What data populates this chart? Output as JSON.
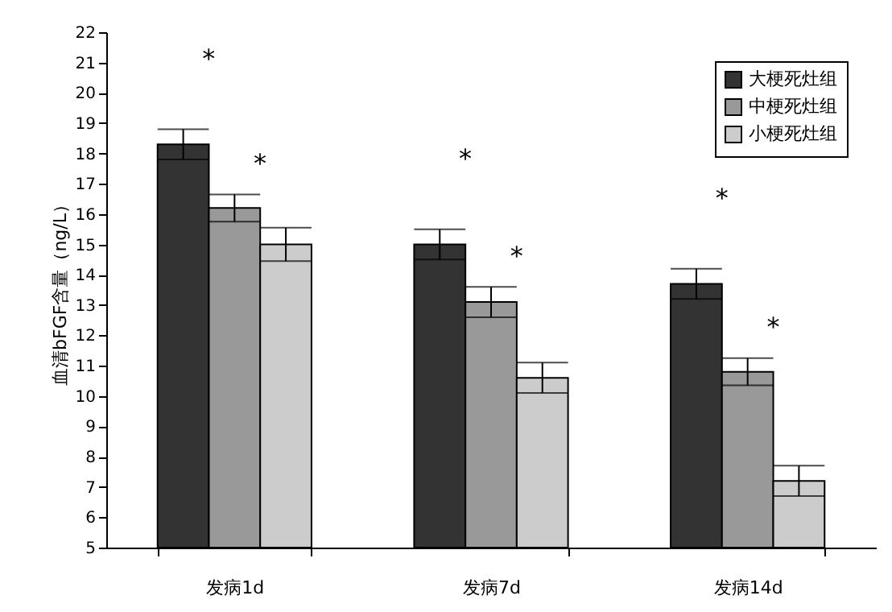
{
  "chart_data": {
    "type": "bar",
    "ylabel": "血清bFGF含量（ng/L）",
    "categories": [
      "发病1d",
      "发病7d",
      "发病14d"
    ],
    "series": [
      {
        "name": "大梗死灶组",
        "color": "#333333",
        "values": [
          18.3,
          15.0,
          13.7
        ],
        "errors": [
          0.5,
          0.5,
          0.5
        ]
      },
      {
        "name": "中梗死灶组",
        "color": "#999999",
        "values": [
          16.2,
          13.1,
          10.8
        ],
        "errors": [
          0.45,
          0.5,
          0.45
        ]
      },
      {
        "name": "小梗死灶组",
        "color": "#cccccc",
        "values": [
          15.0,
          10.6,
          7.2
        ],
        "errors": [
          0.55,
          0.5,
          0.5
        ]
      }
    ],
    "ylim": [
      5,
      22
    ],
    "yticks": [
      5,
      6,
      7,
      8,
      9,
      10,
      11,
      12,
      13,
      14,
      15,
      16,
      17,
      18,
      19,
      20,
      21,
      22
    ],
    "grid": false,
    "legend": "top right",
    "annotations": [
      "*",
      "*",
      "*",
      "*",
      "*",
      "*"
    ]
  }
}
